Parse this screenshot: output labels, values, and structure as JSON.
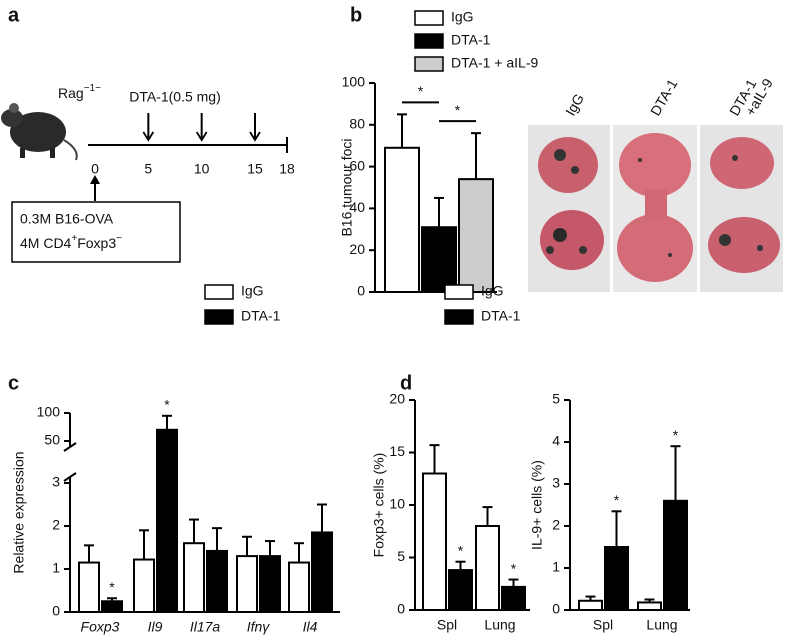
{
  "schematic": {
    "panel": "a",
    "host": "Rag",
    "host_sup": "−1−",
    "treatment": "DTA-1(0.5 mg)",
    "timeline": [
      0,
      5,
      10,
      15,
      18
    ],
    "cells": {
      "line1": "0.3M B16-OVA",
      "line2_a": "4M CD4",
      "line2_b": "+",
      "line2_c": "Foxp3",
      "line2_d": "−"
    }
  },
  "photos": {
    "labels": [
      [
        "IgG"
      ],
      [
        "DTA-1"
      ],
      [
        "DTA-1",
        "+aIL-9"
      ]
    ]
  },
  "chart_data": [
    {
      "type": "bar",
      "panel": "b",
      "y_label": "B16 tumour foci",
      "ylim": [
        0,
        100
      ],
      "yticks": [
        0,
        20,
        40,
        60,
        80,
        100
      ],
      "series": [
        {
          "name": "IgG",
          "color": "#ffffff",
          "values": [
            69
          ],
          "errors": [
            16
          ]
        },
        {
          "name": "DTA-1",
          "color": "#000000",
          "values": [
            31
          ],
          "errors": [
            14
          ]
        },
        {
          "name": "DTA-1 + aIL-9",
          "color": "#cccccc",
          "values": [
            54
          ],
          "errors": [
            22
          ]
        }
      ],
      "comparisons": [
        {
          "series": [
            0,
            1
          ],
          "label": "*"
        },
        {
          "series": [
            1,
            2
          ],
          "label": "*"
        }
      ],
      "legend": true
    },
    {
      "type": "bar",
      "panel": "c",
      "y_label": "Relative expression",
      "ylim": [
        0,
        100
      ],
      "yticks": [
        0,
        1,
        2,
        3,
        50,
        100
      ],
      "axis_break": [
        3,
        50
      ],
      "categories": [
        "Foxp3",
        "Il9",
        "Il17a",
        "Ifnγ",
        "Il4"
      ],
      "series": [
        {
          "name": "IgG",
          "color": "#ffffff",
          "values": [
            1.15,
            1.22,
            1.6,
            1.3,
            1.15
          ],
          "errors": [
            0.4,
            0.68,
            0.55,
            0.45,
            0.45
          ],
          "significance": [
            null,
            null,
            null,
            null,
            null
          ]
        },
        {
          "name": "DTA-1",
          "color": "#000000",
          "values": [
            0.25,
            70,
            1.42,
            1.3,
            1.85
          ],
          "errors": [
            0.07,
            25,
            0.53,
            0.35,
            0.65
          ],
          "significance": [
            "*",
            "*",
            null,
            null,
            null
          ]
        }
      ],
      "legend": true
    },
    {
      "type": "bar",
      "panel": "d",
      "y_label": "Foxp3+ cells (%)",
      "ylim": [
        0,
        20
      ],
      "yticks": [
        0,
        5,
        10,
        15,
        20
      ],
      "categories": [
        "Spl",
        "Lung"
      ],
      "series": [
        {
          "name": "IgG",
          "color": "#ffffff",
          "values": [
            13,
            8
          ],
          "errors": [
            2.7,
            1.8
          ],
          "significance": [
            null,
            null
          ]
        },
        {
          "name": "DTA-1",
          "color": "#000000",
          "values": [
            3.8,
            2.2
          ],
          "errors": [
            0.8,
            0.7
          ],
          "significance": [
            "*",
            "*"
          ]
        }
      ],
      "legend": true
    },
    {
      "type": "bar",
      "y_label": "IL-9+ cells (%)",
      "ylim": [
        0,
        5
      ],
      "yticks": [
        0,
        1,
        2,
        3,
        4,
        5
      ],
      "categories": [
        "Spl",
        "Lung"
      ],
      "series": [
        {
          "color": "#ffffff",
          "values": [
            0.22,
            0.18
          ],
          "errors": [
            0.1,
            0.07
          ],
          "significance": [
            null,
            null
          ]
        },
        {
          "color": "#000000",
          "values": [
            1.5,
            2.6
          ],
          "errors": [
            0.85,
            1.3
          ],
          "significance": [
            "*",
            "*"
          ]
        }
      ],
      "legend": false
    }
  ]
}
